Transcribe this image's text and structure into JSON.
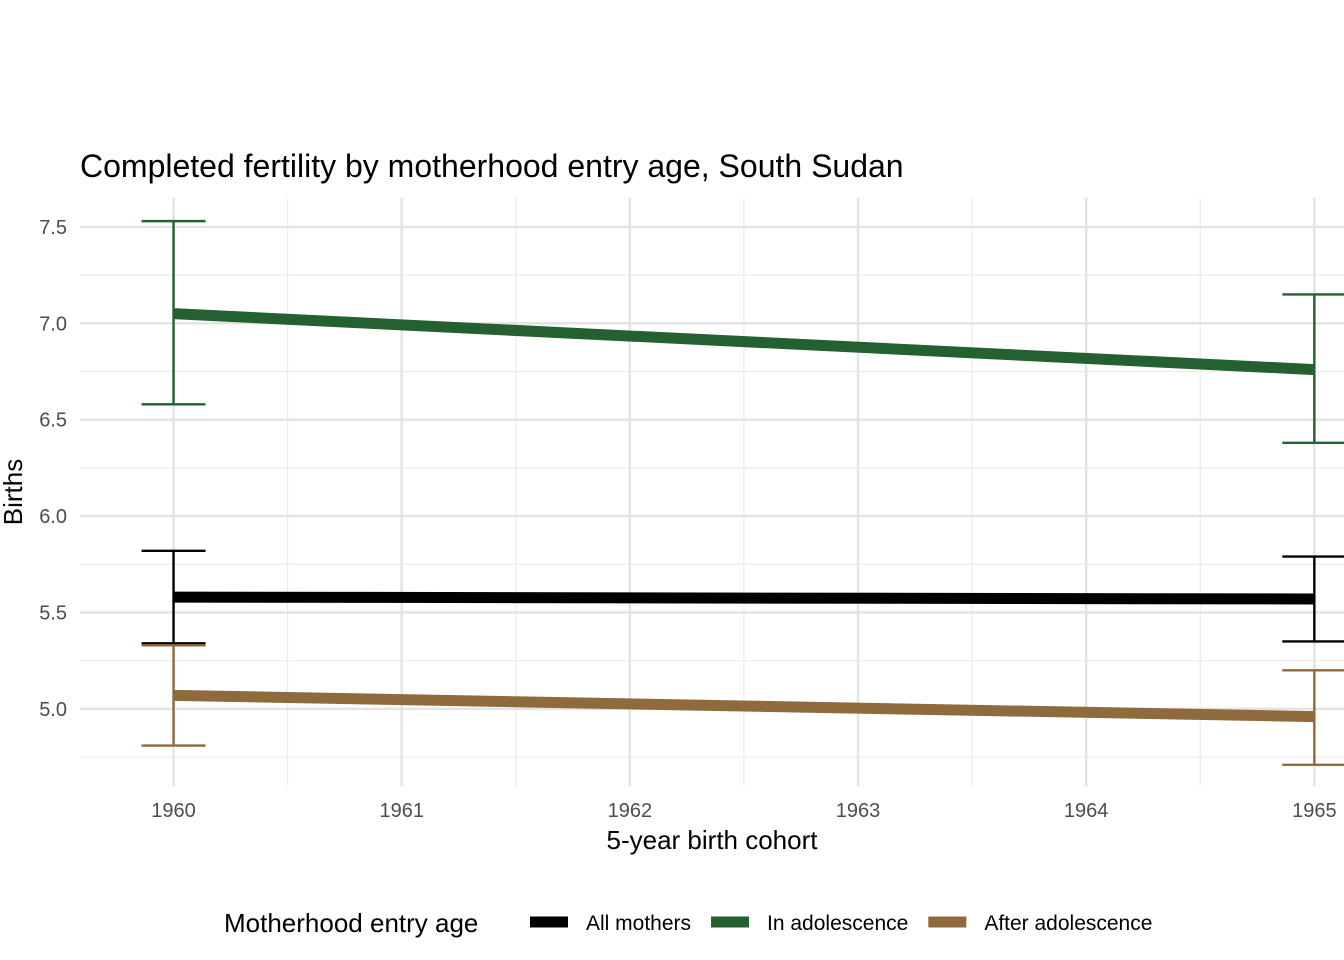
{
  "chart_data": {
    "type": "line",
    "title": "Completed fertility by motherhood entry age,  South Sudan",
    "xlabel": "5-year birth cohort",
    "ylabel": "Births",
    "x": [
      1960,
      1965
    ],
    "xlim": [
      1959.59,
      1965.13
    ],
    "ylim": [
      4.6,
      7.65
    ],
    "x_ticks": [
      1960,
      1961,
      1962,
      1963,
      1964,
      1965
    ],
    "y_ticks": [
      5.0,
      5.5,
      6.0,
      6.5,
      7.0,
      7.5
    ],
    "y_tick_labels": [
      "5.0",
      "5.5",
      "6.0",
      "6.5",
      "7.0",
      "7.5"
    ],
    "grid": true,
    "legend_position": "bottom",
    "legend_title": "Motherhood entry age",
    "series": [
      {
        "name": "All mothers",
        "color": "#000000",
        "values": [
          5.58,
          5.57
        ],
        "lower": [
          5.34,
          5.35
        ],
        "upper": [
          5.82,
          5.79
        ]
      },
      {
        "name": "In adolescence",
        "color": "#246030",
        "values": [
          7.05,
          6.76
        ],
        "lower": [
          6.58,
          6.38
        ],
        "upper": [
          7.53,
          7.15
        ]
      },
      {
        "name": "After adolescence",
        "color": "#8e6a3d",
        "values": [
          5.07,
          4.96
        ],
        "lower": [
          4.81,
          4.71
        ],
        "upper": [
          5.33,
          5.2
        ]
      }
    ]
  }
}
